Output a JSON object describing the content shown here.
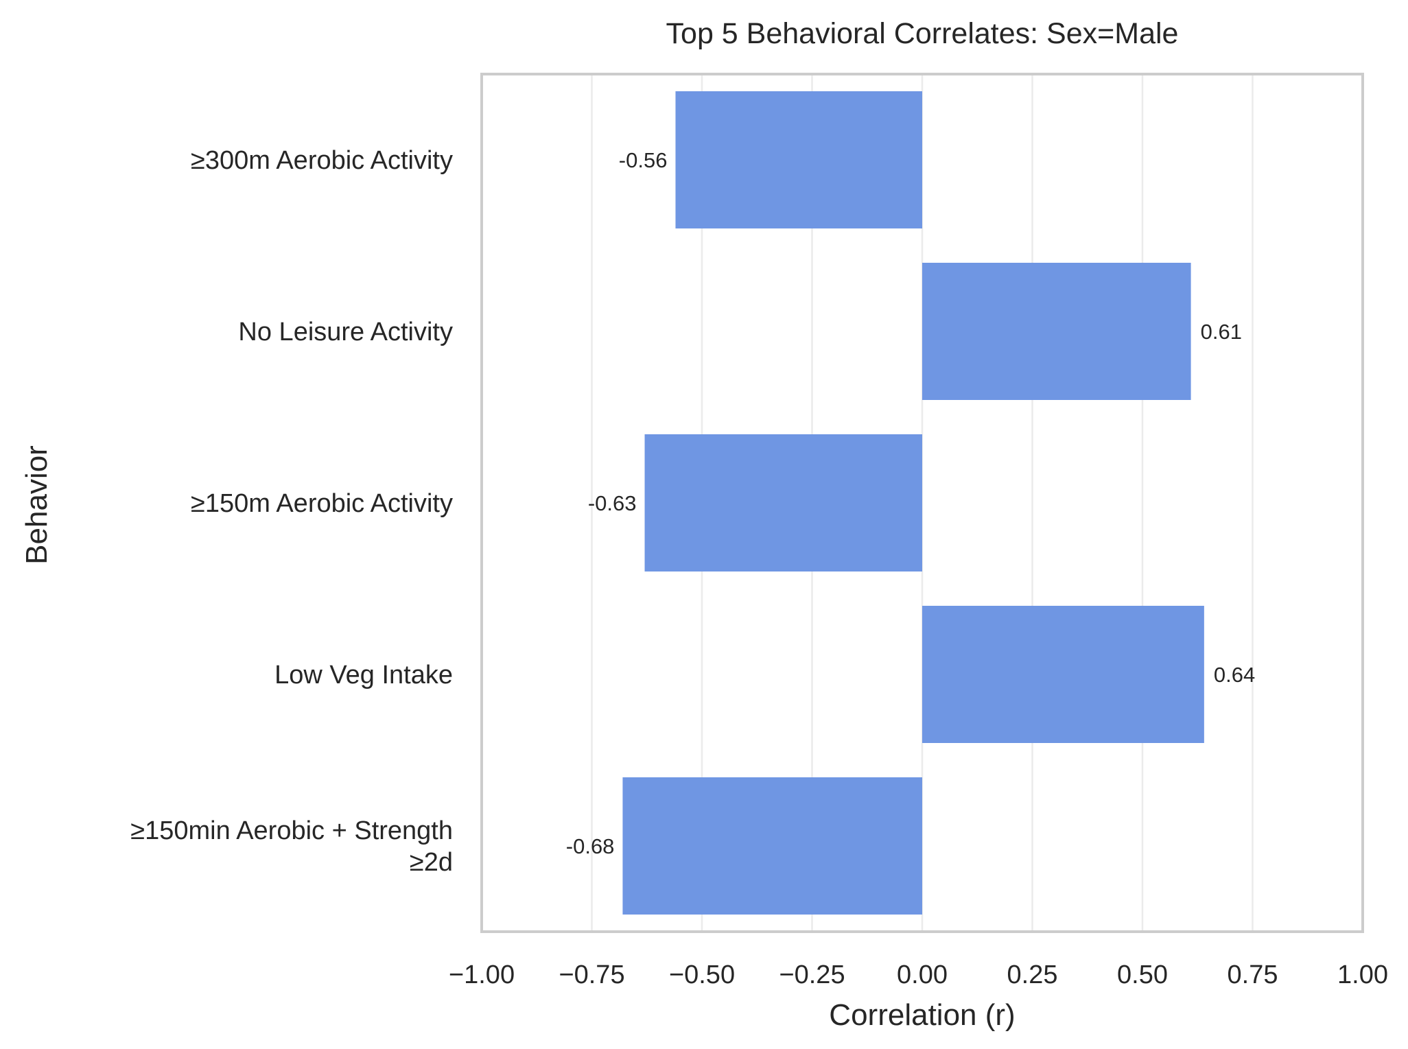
{
  "chart_data": {
    "type": "bar",
    "orientation": "horizontal",
    "title": "Top 5 Behavioral Correlates: Sex=Male",
    "xlabel": "Correlation (r)",
    "ylabel": "Behavior",
    "xlim": [
      -1.0,
      1.0
    ],
    "xticks": [
      -1.0,
      -0.75,
      -0.5,
      -0.25,
      0.0,
      0.25,
      0.5,
      0.75,
      1.0
    ],
    "xtick_labels": [
      "−1.00",
      "−0.75",
      "−0.50",
      "−0.25",
      "0.00",
      "0.25",
      "0.50",
      "0.75",
      "1.00"
    ],
    "grid": "vertical",
    "bar_color": "#6f96e3",
    "categories": [
      [
        "≥300m Aerobic Activity"
      ],
      [
        "No Leisure Activity"
      ],
      [
        "≥150m Aerobic Activity"
      ],
      [
        "Low Veg Intake"
      ],
      [
        "≥150min Aerobic + Strength",
        "≥2d"
      ]
    ],
    "values": [
      -0.56,
      0.61,
      -0.63,
      0.64,
      -0.68
    ],
    "value_labels": [
      "-0.56",
      "0.61",
      "-0.63",
      "0.64",
      "-0.68"
    ]
  }
}
